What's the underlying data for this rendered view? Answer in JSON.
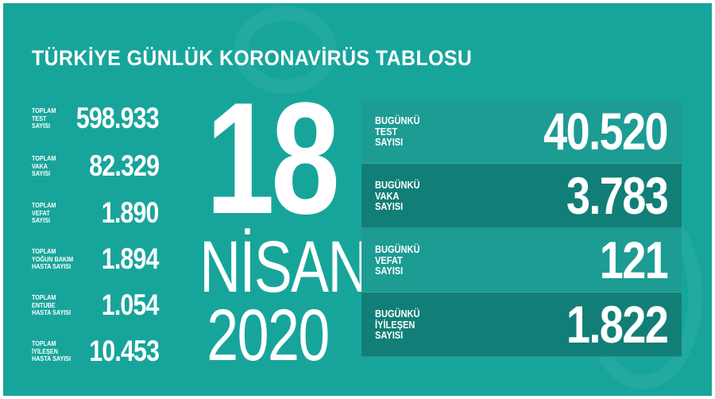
{
  "title": "TÜRKİYE GÜNLÜK KORONAVİRÜS TABLOSU",
  "date": {
    "day": "18",
    "month": "NİSAN",
    "year": "2020"
  },
  "totals": [
    {
      "label": "TOPLAM\nTEST\nSAYISI",
      "value": "598.933"
    },
    {
      "label": "TOPLAM\nVAKA\nSAYISI",
      "value": "82.329"
    },
    {
      "label": "TOPLAM\nVEFAT\nSAYISI",
      "value": "1.890"
    },
    {
      "label": "TOPLAM\nYOĞUN BAKIM\nHASTA SAYISI",
      "value": "1.894"
    },
    {
      "label": "TOPLAM\nENTUBE\nHASTA SAYISI",
      "value": "1.054"
    },
    {
      "label": "TOPLAM\nİYİLEŞEN\nHASTA SAYISI",
      "value": "10.453"
    }
  ],
  "today": [
    {
      "label": "BUGÜNKÜ\nTEST\nSAYISI",
      "value": "40.520"
    },
    {
      "label": "BUGÜNKÜ\nVAKA\nSAYISI",
      "value": "3.783"
    },
    {
      "label": "BUGÜNKÜ\nVEFAT\nSAYISI",
      "value": "121"
    },
    {
      "label": "BUGÜNKÜ\nİYİLEŞEN\nSAYISI",
      "value": "1.822"
    }
  ],
  "colors": {
    "background": "#17a59b",
    "row_light": "#1c9c93",
    "row_dark": "#117f77",
    "text": "#ffffff"
  }
}
